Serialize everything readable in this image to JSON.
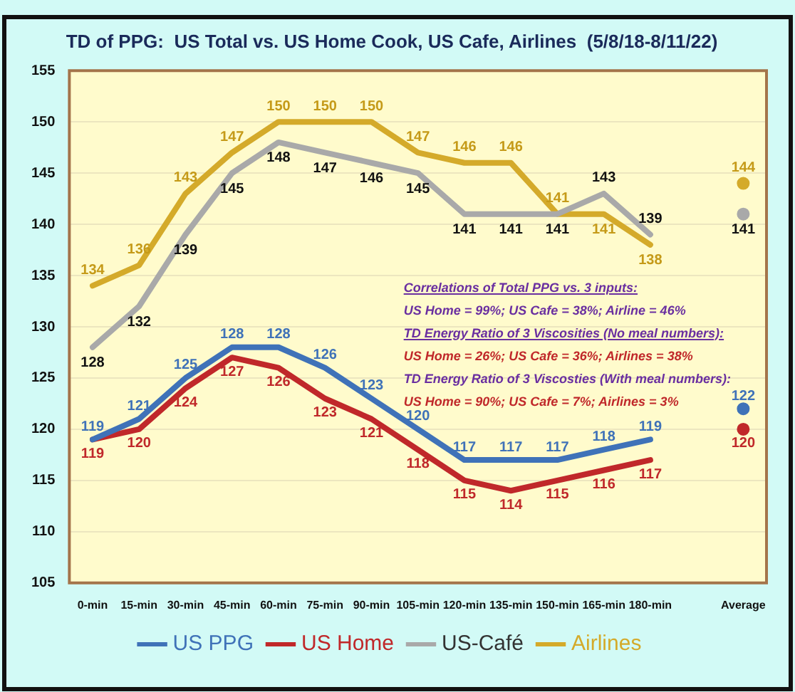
{
  "chart_data": {
    "type": "line",
    "title": "TD of PPG:  US Total vs. US Home Cook, US Cafe, Airlines  (5/8/18-8/11/22)",
    "categories": [
      "0-min",
      "15-min",
      "30-min",
      "45-min",
      "60-min",
      "75-min",
      "90-min",
      "105-min",
      "120-min",
      "135-min",
      "150-min",
      "165-min",
      "180-min",
      null,
      "Average"
    ],
    "series": [
      {
        "name": "US PPG",
        "color": "#3f72b8",
        "values": [
          119,
          121,
          125,
          128,
          128,
          126,
          123,
          120,
          117,
          117,
          117,
          118,
          119,
          null,
          122
        ]
      },
      {
        "name": "US Home",
        "color": "#c0282a",
        "values": [
          119,
          120,
          124,
          127,
          126,
          123,
          121,
          118,
          115,
          114,
          115,
          116,
          117,
          null,
          120
        ]
      },
      {
        "name": "US-Café",
        "color": "#a9a9a9",
        "values": [
          128,
          132,
          139,
          145,
          148,
          147,
          146,
          145,
          141,
          141,
          141,
          143,
          139,
          null,
          141
        ]
      },
      {
        "name": "Airlines",
        "color": "#d4aa2a",
        "values": [
          134,
          136,
          143,
          147,
          150,
          150,
          150,
          147,
          146,
          146,
          141,
          141,
          138,
          null,
          144
        ]
      }
    ],
    "ylim": [
      105,
      155
    ],
    "yticks": [
      105,
      110,
      115,
      120,
      125,
      130,
      135,
      140,
      145,
      150,
      155
    ],
    "grid": "y",
    "legend": "bottom",
    "marker": "none",
    "line_style": "solid",
    "data_labels": true,
    "annotations": [
      "Correlations of Total PPG vs. 3 inputs:",
      "US Home = 99%;  US Cafe = 38%; Airline = 46%",
      "TD Energy Ratio of 3 Viscosities (No meal numbers):",
      "US Home = 26%;  US Cafe = 36%;  Airlines = 38%",
      "TD Energy Ratio of 3 Viscosties (With meal numbers):",
      "US Home = 90%;  US Cafe = 7%;  Airlines = 3%"
    ]
  }
}
